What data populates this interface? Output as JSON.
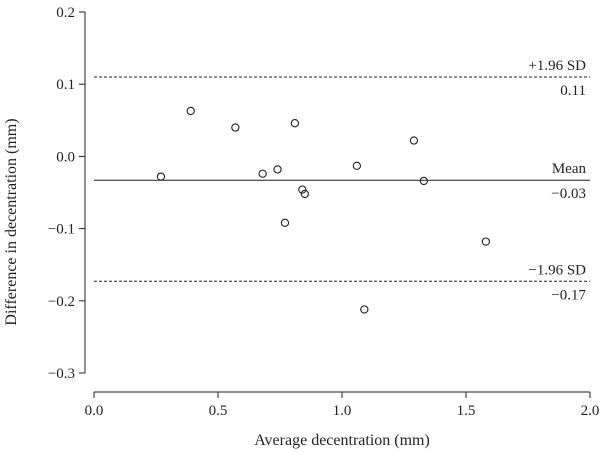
{
  "chart_data": {
    "type": "scatter",
    "title": "",
    "xlabel": "Average decentration (mm)",
    "ylabel": "Difference in decentration (mm)",
    "xlim": [
      0.0,
      2.0
    ],
    "ylim": [
      -0.3,
      0.2
    ],
    "x_ticks": [
      "0.0",
      "0.5",
      "1.0",
      "1.5",
      "2.0"
    ],
    "y_ticks": [
      "0.2",
      "0.1",
      "0.0",
      "−0.1",
      "−0.2",
      "−0.3"
    ],
    "grid": false,
    "points": [
      {
        "x": 0.27,
        "y": -0.028
      },
      {
        "x": 0.39,
        "y": 0.063
      },
      {
        "x": 0.57,
        "y": 0.04
      },
      {
        "x": 0.68,
        "y": -0.024
      },
      {
        "x": 0.74,
        "y": -0.018
      },
      {
        "x": 0.77,
        "y": -0.092
      },
      {
        "x": 0.81,
        "y": 0.046
      },
      {
        "x": 0.84,
        "y": -0.046
      },
      {
        "x": 0.85,
        "y": -0.052
      },
      {
        "x": 1.06,
        "y": -0.013
      },
      {
        "x": 1.09,
        "y": -0.212
      },
      {
        "x": 1.29,
        "y": 0.022
      },
      {
        "x": 1.33,
        "y": -0.034
      },
      {
        "x": 1.58,
        "y": -0.118
      }
    ],
    "reference_lines": [
      {
        "key": "upper",
        "value": 0.11,
        "style": "dashed",
        "label_top": "+1.96 SD",
        "label_bottom": "0.11"
      },
      {
        "key": "mean",
        "value": -0.033,
        "style": "solid",
        "label_top": "Mean",
        "label_bottom": "−0.03"
      },
      {
        "key": "lower",
        "value": -0.173,
        "style": "dashed",
        "label_top": "−1.96 SD",
        "label_bottom": "−0.17"
      }
    ]
  }
}
